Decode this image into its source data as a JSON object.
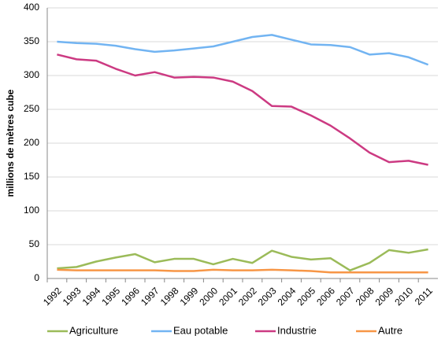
{
  "chart_data": {
    "type": "line",
    "ylabel": "millions de mètres cube",
    "categories": [
      "1992",
      "1993",
      "1994",
      "1995",
      "1996",
      "1997",
      "1998",
      "1999",
      "2000",
      "2001",
      "2002",
      "2003",
      "2004",
      "2005",
      "2006",
      "2007",
      "2008",
      "2009",
      "2010",
      "2011"
    ],
    "series": [
      {
        "name": "Agriculture",
        "color": "#9bbb59",
        "values": [
          15,
          17,
          25,
          31,
          36,
          24,
          29,
          29,
          21,
          29,
          23,
          41,
          32,
          28,
          30,
          12,
          23,
          42,
          38,
          43
        ]
      },
      {
        "name": "Eau potable",
        "color": "#72b4f2",
        "values": [
          350,
          348,
          347,
          344,
          339,
          335,
          337,
          340,
          343,
          350,
          357,
          360,
          353,
          346,
          345,
          342,
          331,
          333,
          327,
          316
        ]
      },
      {
        "name": "Industrie",
        "color": "#cc3a82",
        "values": [
          331,
          324,
          322,
          310,
          300,
          305,
          297,
          298,
          297,
          291,
          277,
          255,
          254,
          241,
          226,
          207,
          186,
          172,
          174,
          168
        ]
      },
      {
        "name": "Autre",
        "color": "#f79646",
        "values": [
          13,
          12,
          12,
          12,
          12,
          12,
          11,
          11,
          13,
          12,
          12,
          13,
          12,
          11,
          9,
          9,
          9,
          9,
          9,
          9
        ]
      }
    ],
    "ylim": [
      0,
      400
    ],
    "yticks": [
      0,
      50,
      100,
      150,
      200,
      250,
      300,
      350,
      400
    ],
    "grid": true,
    "legend": "bottom"
  }
}
